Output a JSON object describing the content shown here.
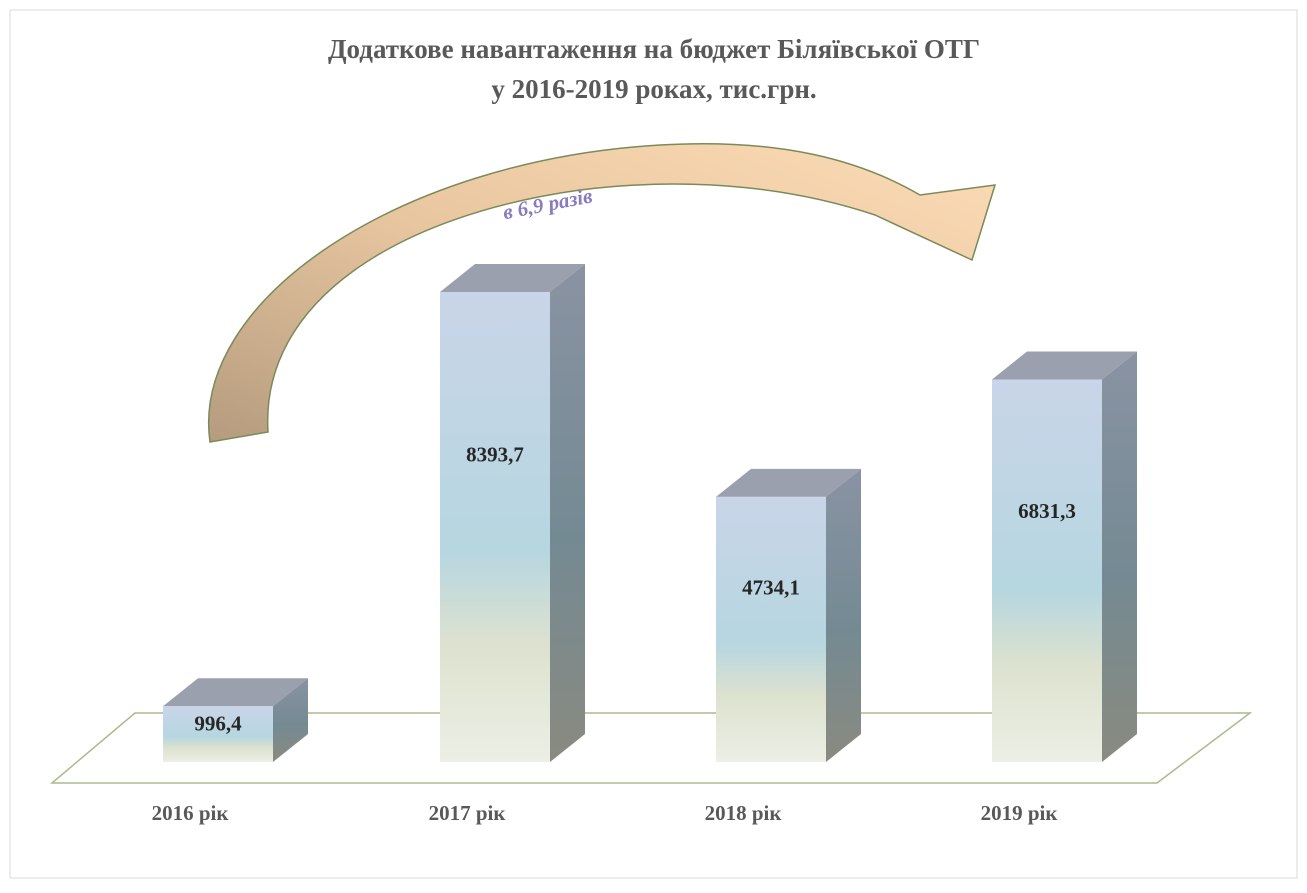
{
  "chart_data": {
    "type": "bar3d",
    "title": "Додаткове навантаження на бюджет Біляївської ОТГ",
    "subtitle": "у 2016-2019 роках, тис.грн.",
    "annotation": "в 6,9 разів",
    "categories": [
      "2016 рік",
      "2017 рік",
      "2018 рік",
      "2019 рік"
    ],
    "values": [
      996.4,
      8393.7,
      4734.1,
      6831.3
    ],
    "value_labels": [
      "996,4",
      "8393,7",
      "4734,1",
      "6831,3"
    ]
  }
}
